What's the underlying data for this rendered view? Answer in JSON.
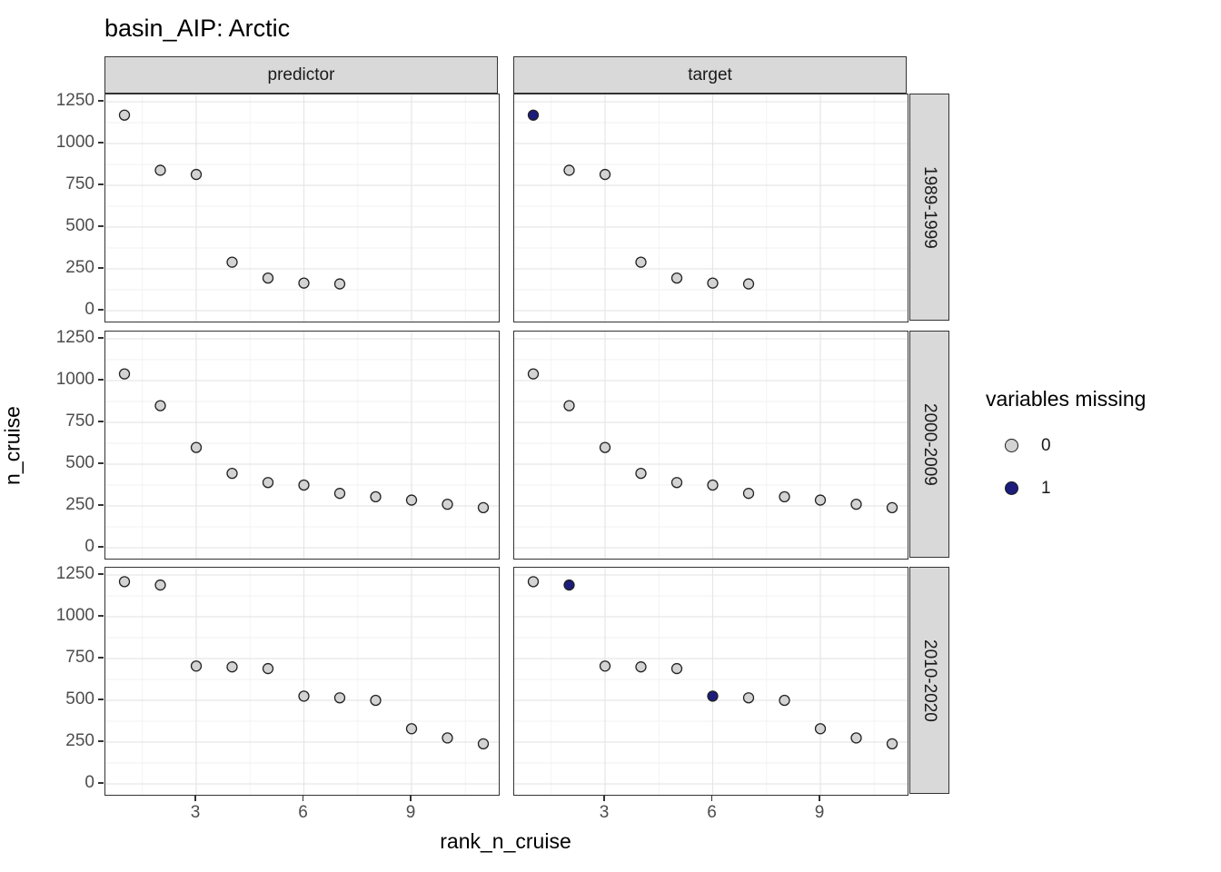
{
  "title": "basin_AIP: Arctic",
  "axes": {
    "x_title": "rank_n_cruise",
    "y_title": "n_cruise"
  },
  "facets": {
    "columns": [
      "predictor",
      "target"
    ],
    "rows": [
      "1989-1999",
      "2000-2009",
      "2010-2020"
    ]
  },
  "legend": {
    "title": "variables missing",
    "items": [
      {
        "label": "0",
        "color": "#d3d3d3"
      },
      {
        "label": "1",
        "color": "#1c1c7c"
      }
    ]
  },
  "colors": {
    "strip_fill": "#d9d9d9",
    "panel_border": "#333333",
    "grid_major": "#e6e6e6",
    "grid_minor": "#f2f2f2",
    "point_stroke": "#222222",
    "point_gray": "#d3d3d3",
    "point_navy": "#1c1c7c",
    "axis_text": "#4d4d4d"
  },
  "chart_data": {
    "type": "scatter",
    "title": "basin_AIP: Arctic",
    "xlabel": "rank_n_cruise",
    "ylabel": "n_cruise",
    "xlim": [
      1,
      11
    ],
    "ylim": [
      0,
      1250
    ],
    "x_breaks": [
      3,
      6,
      9
    ],
    "x_minor_breaks": [
      1.5,
      4.5,
      7.5,
      10.5
    ],
    "y_breaks": [
      0,
      250,
      500,
      750,
      1000,
      1250
    ],
    "y_minor_breaks": [
      125,
      375,
      625,
      875,
      1125
    ],
    "grid": true,
    "legend_title": "variables missing",
    "legend_position": "right",
    "facet_cols": [
      "predictor",
      "target"
    ],
    "facet_rows": [
      "1989-1999",
      "2000-2009",
      "2010-2020"
    ],
    "panels": [
      {
        "col": "predictor",
        "row": "1989-1999",
        "x": [
          1,
          2,
          3,
          4,
          5,
          6,
          7
        ],
        "y": [
          1170,
          840,
          815,
          290,
          195,
          165,
          160
        ],
        "missing": [
          0,
          0,
          0,
          0,
          0,
          0,
          0
        ]
      },
      {
        "col": "target",
        "row": "1989-1999",
        "x": [
          1,
          2,
          3,
          4,
          5,
          6,
          7
        ],
        "y": [
          1170,
          840,
          815,
          290,
          195,
          165,
          160
        ],
        "missing": [
          1,
          0,
          0,
          0,
          0,
          0,
          0
        ]
      },
      {
        "col": "predictor",
        "row": "2000-2009",
        "x": [
          1,
          2,
          3,
          4,
          5,
          6,
          7,
          8,
          9,
          10,
          11
        ],
        "y": [
          1040,
          850,
          600,
          445,
          390,
          375,
          325,
          305,
          285,
          260,
          240
        ],
        "missing": [
          0,
          0,
          0,
          0,
          0,
          0,
          0,
          0,
          0,
          0,
          0
        ]
      },
      {
        "col": "target",
        "row": "2000-2009",
        "x": [
          1,
          2,
          3,
          4,
          5,
          6,
          7,
          8,
          9,
          10,
          11
        ],
        "y": [
          1040,
          850,
          600,
          445,
          390,
          375,
          325,
          305,
          285,
          260,
          240
        ],
        "missing": [
          0,
          0,
          0,
          0,
          0,
          0,
          0,
          0,
          0,
          0,
          0
        ]
      },
      {
        "col": "predictor",
        "row": "2010-2020",
        "x": [
          1,
          2,
          3,
          4,
          5,
          6,
          7,
          8,
          9,
          10,
          11
        ],
        "y": [
          1210,
          1190,
          705,
          700,
          690,
          525,
          515,
          500,
          330,
          275,
          240
        ],
        "missing": [
          0,
          0,
          0,
          0,
          0,
          0,
          0,
          0,
          0,
          0,
          0
        ]
      },
      {
        "col": "target",
        "row": "2010-2020",
        "x": [
          1,
          2,
          3,
          4,
          5,
          6,
          7,
          8,
          9,
          10,
          11
        ],
        "y": [
          1210,
          1190,
          705,
          700,
          690,
          525,
          515,
          500,
          330,
          275,
          240
        ],
        "missing": [
          0,
          1,
          0,
          0,
          0,
          1,
          0,
          0,
          0,
          0,
          0
        ]
      }
    ]
  }
}
